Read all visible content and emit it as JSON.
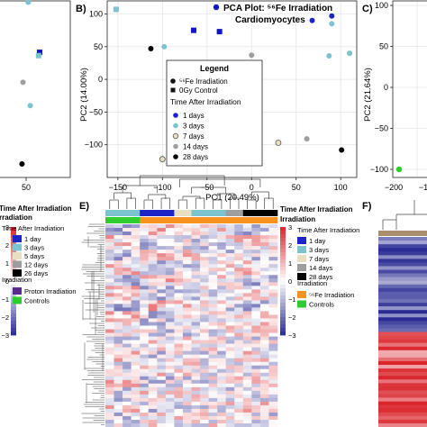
{
  "panels": {
    "b_label": "B)",
    "c_label": "C)",
    "e_label": "E)",
    "f_label": "F)"
  },
  "colors": {
    "fe_dark_blue": "#1515c8",
    "day1": "#1d24c6",
    "day3": "#7ac3cf",
    "day7": "#e8dfc2",
    "day14": "#9e9e9e",
    "day28": "#000000",
    "heat_low": "#2b2c93",
    "heat_mid": "#ffffff",
    "heat_high": "#d9262c",
    "proton": "#5b2a90",
    "fe56": "#f7931e",
    "control": "#2ecc2e",
    "tan": "#a88e6c"
  },
  "chart_data": [
    {
      "type": "scatter",
      "panel": "A (cropped)",
      "title": "",
      "xlabel": "",
      "ylabel": "",
      "xticks": [
        "50"
      ],
      "points": [
        {
          "x": 52,
          "y": 92,
          "shape": "circle",
          "color": "#7ac3cf"
        },
        {
          "x": 63,
          "y": 62,
          "shape": "square",
          "color": "#1515c8"
        },
        {
          "x": 62,
          "y": 60,
          "shape": "square",
          "color": "#7ac3cf"
        },
        {
          "x": -10,
          "y": 45,
          "shape": "square",
          "color": "#1515c8"
        },
        {
          "x": 47,
          "y": 44,
          "shape": "circle",
          "color": "#9e9e9e"
        },
        {
          "x": 54,
          "y": 30,
          "shape": "circle",
          "color": "#7ac3cf"
        },
        {
          "x": 46,
          "y": -5,
          "shape": "circle",
          "color": "#000000"
        }
      ]
    },
    {
      "type": "scatter",
      "panel": "B",
      "title": "PCA Plot: ⁵⁶Fe Irradiation Cardiomyocytes",
      "title_line1": "PCA Plot: ⁵⁶Fe Irradiation",
      "title_line2": "Cardiomyocytes",
      "xlabel": "PC1 (20.49%)",
      "ylabel": "PC2 (14.00%)",
      "xlim": [
        -162,
        118
      ],
      "ylim": [
        -150,
        120
      ],
      "xticks": [
        -150,
        -100,
        -50,
        0,
        50,
        100
      ],
      "yticks": [
        -100,
        -50,
        0,
        50,
        100
      ],
      "grid": true,
      "legend": {
        "title": "Legend",
        "irradiation": [
          {
            "label": "⁵⁶Fe Irradiation",
            "shape": "circle"
          },
          {
            "label": "0Gy Control",
            "shape": "square"
          }
        ],
        "time_title": "Time After Irradiation",
        "time": [
          {
            "label": "1 days",
            "color": "#1d24c6"
          },
          {
            "label": "3 days",
            "color": "#7ac3cf"
          },
          {
            "label": "7 days",
            "color": "#e8dfc2"
          },
          {
            "label": "14 days",
            "color": "#9e9e9e"
          },
          {
            "label": "28 days",
            "color": "#000000"
          }
        ]
      },
      "points": [
        {
          "x": -152,
          "y": 107,
          "shape": "square",
          "color": "#7ac3cf"
        },
        {
          "x": -65,
          "y": 75,
          "shape": "square",
          "color": "#1515c8"
        },
        {
          "x": -36,
          "y": 73,
          "shape": "square",
          "color": "#1515c8"
        },
        {
          "x": -113,
          "y": 47,
          "shape": "circle",
          "color": "#000000"
        },
        {
          "x": -98,
          "y": 50,
          "shape": "circle",
          "color": "#7ac3cf"
        },
        {
          "x": 0,
          "y": 37,
          "shape": "circle",
          "color": "#9e9e9e"
        },
        {
          "x": -100,
          "y": -122,
          "shape": "circle",
          "color": "#e8dfc2"
        },
        {
          "x": 30,
          "y": -97,
          "shape": "circle",
          "color": "#e8dfc2"
        },
        {
          "x": 68,
          "y": 90,
          "shape": "circle",
          "color": "#1d24c6"
        },
        {
          "x": 90,
          "y": 97,
          "shape": "circle",
          "color": "#1d24c6"
        },
        {
          "x": 90,
          "y": 85,
          "shape": "circle",
          "color": "#7ac3cf"
        },
        {
          "x": 110,
          "y": 40,
          "shape": "circle",
          "color": "#7ac3cf"
        },
        {
          "x": 87,
          "y": 36,
          "shape": "circle",
          "color": "#7ac3cf"
        },
        {
          "x": 62,
          "y": -91,
          "shape": "circle",
          "color": "#9e9e9e"
        },
        {
          "x": 101,
          "y": -108,
          "shape": "circle",
          "color": "#000000"
        }
      ]
    },
    {
      "type": "scatter",
      "panel": "C (cropped)",
      "title": "",
      "xlabel": "",
      "ylabel": "PC2 (21.64%)",
      "xticks": [
        "−200",
        "−1"
      ],
      "yticks": [
        100,
        50,
        0,
        -50,
        -100
      ],
      "grid": true,
      "points": [
        {
          "x": -190,
          "y": -105,
          "shape": "circle",
          "color": "#2ecc2e"
        }
      ]
    },
    {
      "type": "heatmap",
      "panel": "E",
      "title": "",
      "columns": 20,
      "value_range": [
        -3,
        3
      ],
      "annotation_time": [
        "day3",
        "day3",
        "day3",
        "day3",
        "day1",
        "day1",
        "day1",
        "day1",
        "day7",
        "day7",
        "day3",
        "day3",
        "day3",
        "day3",
        "day14",
        "day14",
        "day28",
        "day28",
        "day28",
        "day28"
      ],
      "annotation_irradiation": [
        "control",
        "control",
        "control",
        "control",
        "fe56",
        "fe56",
        "fe56",
        "fe56",
        "fe56",
        "fe56",
        "fe56",
        "fe56",
        "fe56",
        "fe56",
        "fe56",
        "fe56",
        "fe56",
        "fe56",
        "fe56",
        "fe56"
      ],
      "legend_right": {
        "time_title": "Time After Irradiation",
        "time": [
          {
            "label": "1 day",
            "color": "#1d24c6"
          },
          {
            "label": "3 days",
            "color": "#7ac3cf"
          },
          {
            "label": "7 days",
            "color": "#e8dfc2"
          },
          {
            "label": "14 days",
            "color": "#9e9e9e"
          },
          {
            "label": "28 days",
            "color": "#000000"
          }
        ],
        "irr_title": "Irradiation",
        "irradiation": [
          {
            "label": "⁵⁶Fe Irradiation",
            "color": "#f7931e"
          },
          {
            "label": "Controls",
            "color": "#2ecc2e"
          }
        ],
        "scale_ticks": [
          3,
          2,
          1,
          0,
          -1,
          -2,
          -3
        ]
      },
      "legend_left": {
        "header1": "Time After Irradiation",
        "header2": "rradiation",
        "time_title": "Time After Irradiation",
        "time": [
          {
            "label": "1 day",
            "color": "#1d24c6"
          },
          {
            "label": "3 days",
            "color": "#7ac3cf"
          },
          {
            "label": "5 days",
            "color": "#e8dfc2"
          },
          {
            "label": "12 days",
            "color": "#9e9e9e"
          },
          {
            "label": "26 days",
            "color": "#000000"
          }
        ],
        "irr_title": "Irradiation",
        "irradiation": [
          {
            "label": "Proton Irradiation",
            "color": "#5b2a90"
          },
          {
            "label": "Controls",
            "color": "#2ecc2e"
          }
        ],
        "scale_ticks": [
          3,
          2,
          1,
          0,
          -1,
          -2,
          -3
        ]
      }
    },
    {
      "type": "heatmap",
      "panel": "F (cropped)",
      "title": ""
    }
  ]
}
